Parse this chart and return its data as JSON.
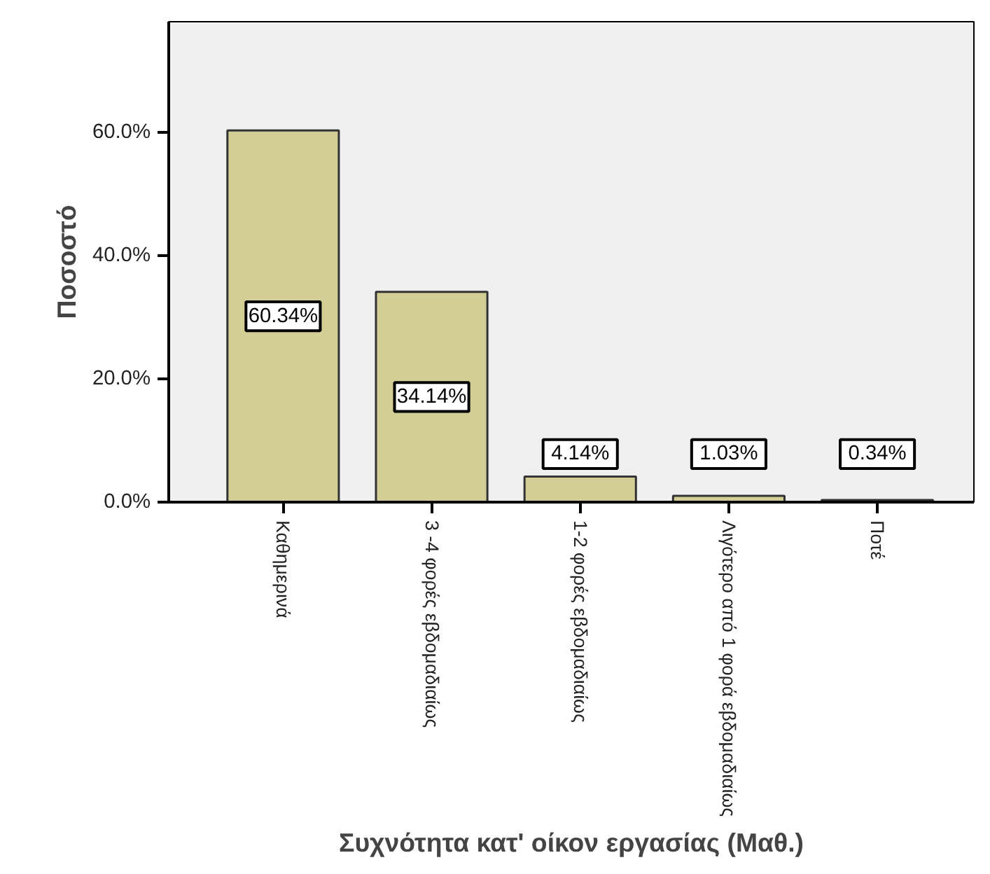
{
  "chart_data": {
    "type": "bar",
    "xlabel": "Συχνότητα κατ' οίκον εργασίας (Μαθ.)",
    "ylabel": "Ποσοστό",
    "categories": [
      "Καθημερινά",
      "3 -4 φορές εβδομαδιαίως",
      "1-2 φορές εβδομαδιαίως",
      "Λιγότερο από 1 φορά εβδομαδιαίως",
      "Ποτέ"
    ],
    "values": [
      60.34,
      34.14,
      4.14,
      1.03,
      0.34
    ],
    "value_labels": [
      "60.34%",
      "34.14%",
      "4.14%",
      "1.03%",
      "0.34%"
    ],
    "color": "#d3ce96",
    "ylim": [
      0,
      78
    ],
    "yticks": [
      {
        "value": 0,
        "label": "0.0%"
      },
      {
        "value": 20,
        "label": "20.0%"
      },
      {
        "value": 40,
        "label": "40.0%"
      },
      {
        "value": 60,
        "label": "60.0%"
      }
    ],
    "grid": false
  }
}
